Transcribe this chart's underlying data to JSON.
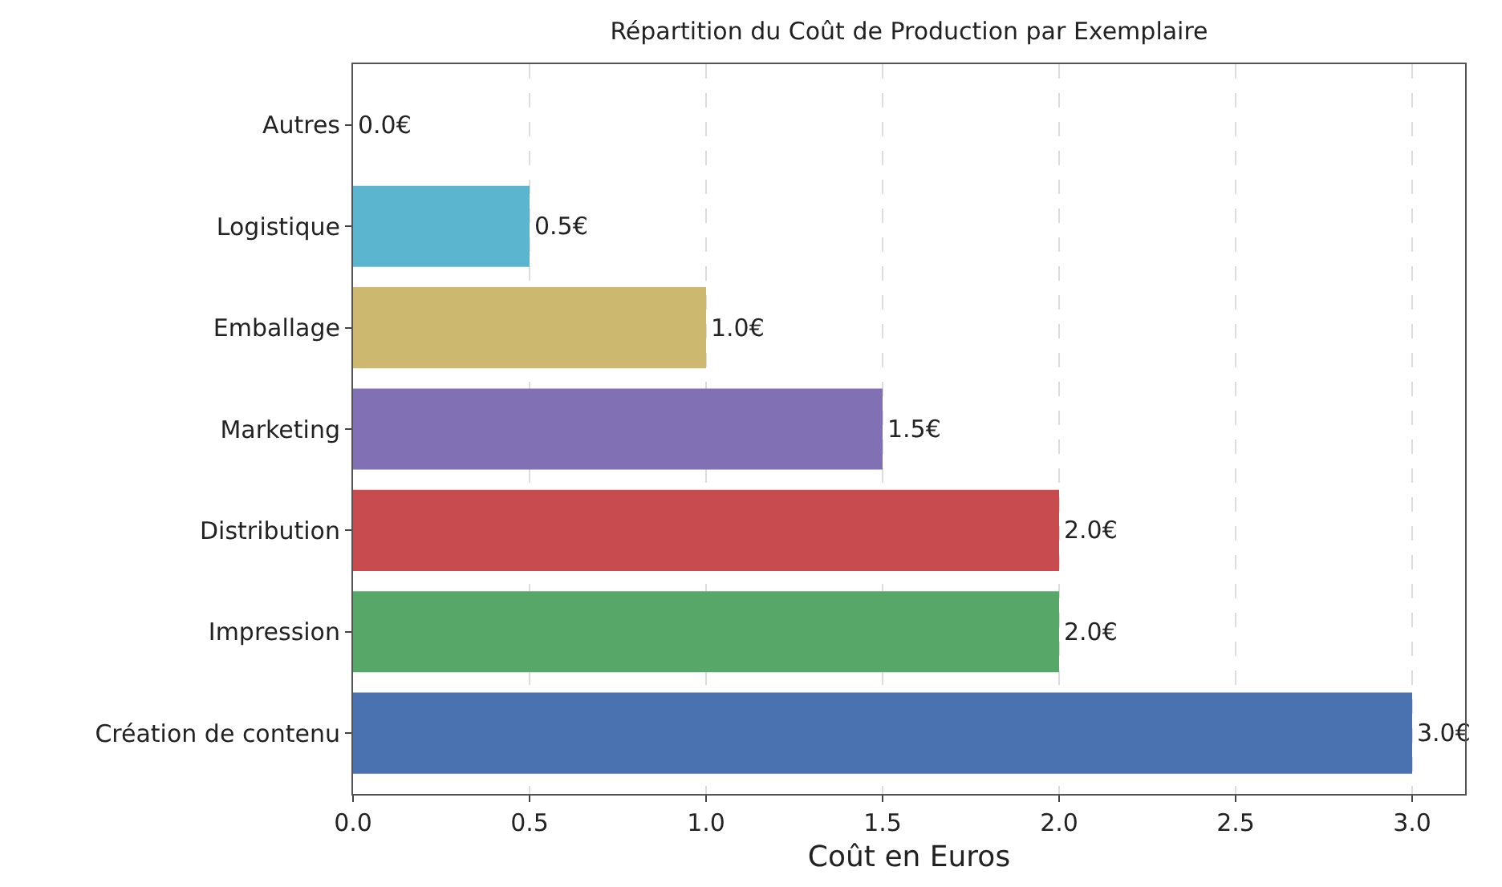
{
  "chart_data": {
    "type": "bar",
    "orientation": "horizontal",
    "title": "Répartition du Coût de Production par Exemplaire",
    "xlabel": "Coût en Euros",
    "categories": [
      "Autres",
      "Logistique",
      "Emballage",
      "Marketing",
      "Distribution",
      "Impression",
      "Création de contenu"
    ],
    "values": [
      0,
      0.5,
      1,
      1.5,
      2,
      2,
      3
    ],
    "colors": [
      "#937860",
      "#5bb5cf",
      "#cdb86f",
      "#8170b3",
      "#c84b4f",
      "#57a868",
      "#4a71b0"
    ],
    "value_labels": [
      "0.0€",
      "0.5€",
      "1.0€",
      "1.5€",
      "2.0€",
      "2.0€",
      "3.0€"
    ],
    "xlim": [
      0,
      3.15
    ],
    "xticks": [
      {
        "value": 0,
        "label": "0.0"
      },
      {
        "value": 0.5,
        "label": "0.5"
      },
      {
        "value": 1,
        "label": "1.0"
      },
      {
        "value": 1.5,
        "label": "1.5"
      },
      {
        "value": 2,
        "label": "2.0"
      },
      {
        "value": 2.5,
        "label": "2.5"
      },
      {
        "value": 3,
        "label": "3.0"
      }
    ],
    "grid": "x"
  }
}
